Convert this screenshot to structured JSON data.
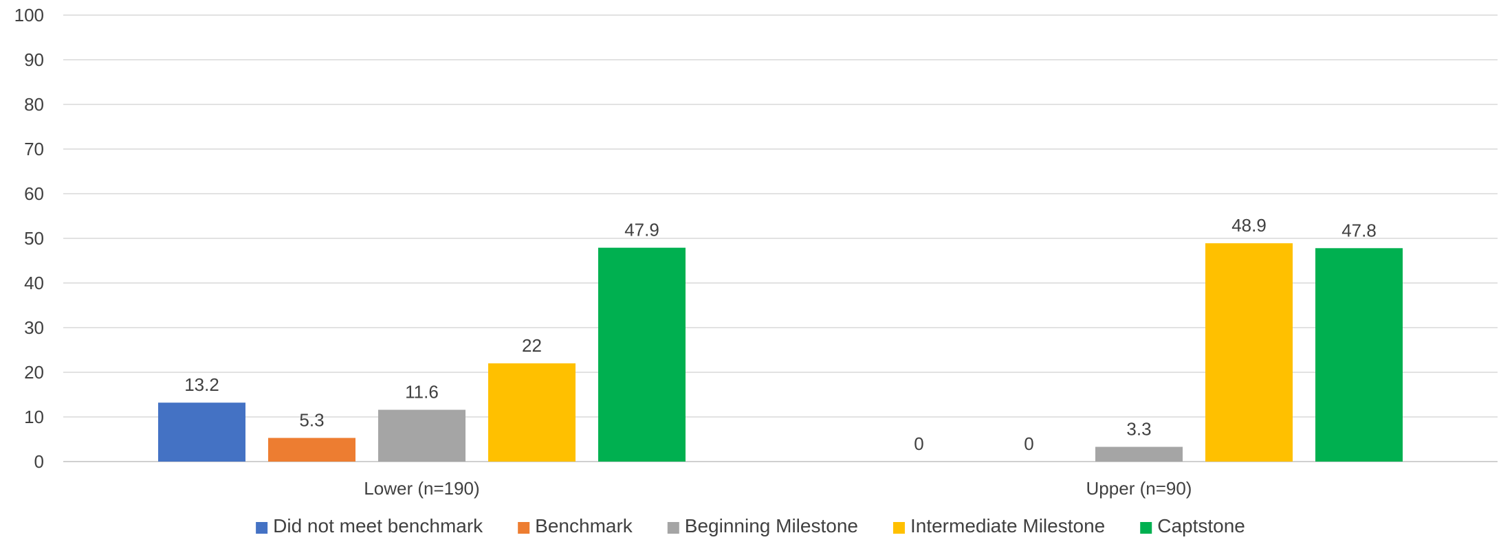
{
  "chart_data": {
    "type": "bar",
    "title": "",
    "xlabel": "",
    "ylabel": "",
    "ylim": [
      0,
      100
    ],
    "yticks": [
      0,
      10,
      20,
      30,
      40,
      50,
      60,
      70,
      80,
      90,
      100
    ],
    "grid": true,
    "legend_position": "bottom",
    "categories": [
      "Lower (n=190)",
      "Upper (n=90)"
    ],
    "series": [
      {
        "name": "Did not meet benchmark",
        "color": "#4472C4",
        "values": [
          13.2,
          0
        ]
      },
      {
        "name": "Benchmark",
        "color": "#ED7D31",
        "values": [
          5.3,
          0
        ]
      },
      {
        "name": "Beginning Milestone",
        "color": "#A5A5A5",
        "values": [
          11.6,
          3.3
        ]
      },
      {
        "name": "Intermediate Milestone",
        "color": "#FFC000",
        "values": [
          22,
          48.9
        ]
      },
      {
        "name": "Captstone",
        "color": "#00B050",
        "values": [
          47.9,
          47.8
        ]
      }
    ]
  }
}
